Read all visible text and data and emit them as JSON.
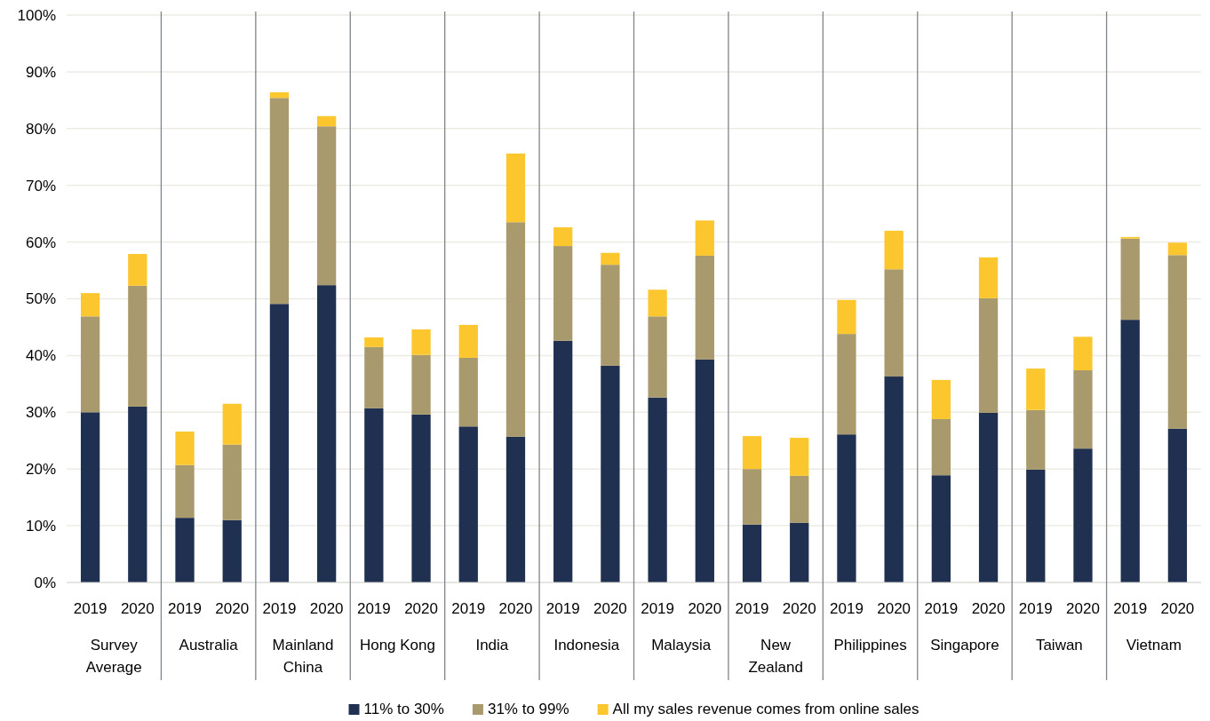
{
  "chart_data": {
    "type": "bar",
    "stacked": true,
    "categories": [
      "2019",
      "2020",
      "2019",
      "2020",
      "2019",
      "2020",
      "2019",
      "2020",
      "2019",
      "2020",
      "2019",
      "2020",
      "2019",
      "2020",
      "2019",
      "2020",
      "2019",
      "2020",
      "2019",
      "2020",
      "2019",
      "2020",
      "2019",
      "2020"
    ],
    "series": [
      {
        "name": "11% to 30%",
        "color": "#203050",
        "values": [
          30.0,
          31.0,
          11.4,
          11.0,
          49.1,
          52.4,
          30.7,
          29.6,
          27.5,
          25.7,
          42.6,
          38.2,
          32.6,
          39.3,
          10.2,
          10.5,
          26.1,
          36.3,
          18.9,
          29.9,
          19.9,
          23.6,
          46.3,
          27.1
        ]
      },
      {
        "name": "31% to 99%",
        "color": "#a99a6e",
        "values": [
          16.9,
          21.3,
          9.3,
          13.3,
          36.3,
          28.0,
          10.8,
          10.5,
          12.1,
          37.8,
          16.7,
          17.8,
          14.3,
          18.3,
          9.8,
          8.3,
          17.7,
          18.9,
          9.9,
          20.2,
          10.5,
          13.8,
          14.3,
          30.6
        ]
      },
      {
        "name": "All my sales revenue comes from online sales",
        "color": "#fcc72e",
        "values": [
          4.1,
          5.6,
          5.9,
          7.2,
          1.0,
          1.8,
          1.7,
          4.5,
          5.8,
          12.1,
          3.3,
          2.1,
          4.7,
          6.2,
          5.8,
          6.7,
          6.0,
          6.8,
          6.9,
          7.2,
          7.3,
          5.9,
          0.3,
          2.2
        ]
      }
    ],
    "annotations": [
      "Survey Average",
      "Australia",
      "Mainland China",
      "Hong Kong",
      "India",
      "Indonesia",
      "Malaysia",
      "New Zealand",
      "Philippines",
      "Singapore",
      "Taiwan",
      "Vietnam"
    ],
    "ylim": [
      0,
      100
    ],
    "yticks": [
      {
        "value": 0,
        "label": "0%"
      },
      {
        "value": 10,
        "label": "10%"
      },
      {
        "value": 20,
        "label": "20%"
      },
      {
        "value": 30,
        "label": "30%"
      },
      {
        "value": 40,
        "label": "40%"
      },
      {
        "value": 50,
        "label": "50%"
      },
      {
        "value": 60,
        "label": "60%"
      },
      {
        "value": 70,
        "label": "70%"
      },
      {
        "value": 80,
        "label": "80%"
      },
      {
        "value": 90,
        "label": "90%"
      },
      {
        "value": 100,
        "label": "100%"
      }
    ],
    "grid": "y",
    "legend": "bottom"
  }
}
